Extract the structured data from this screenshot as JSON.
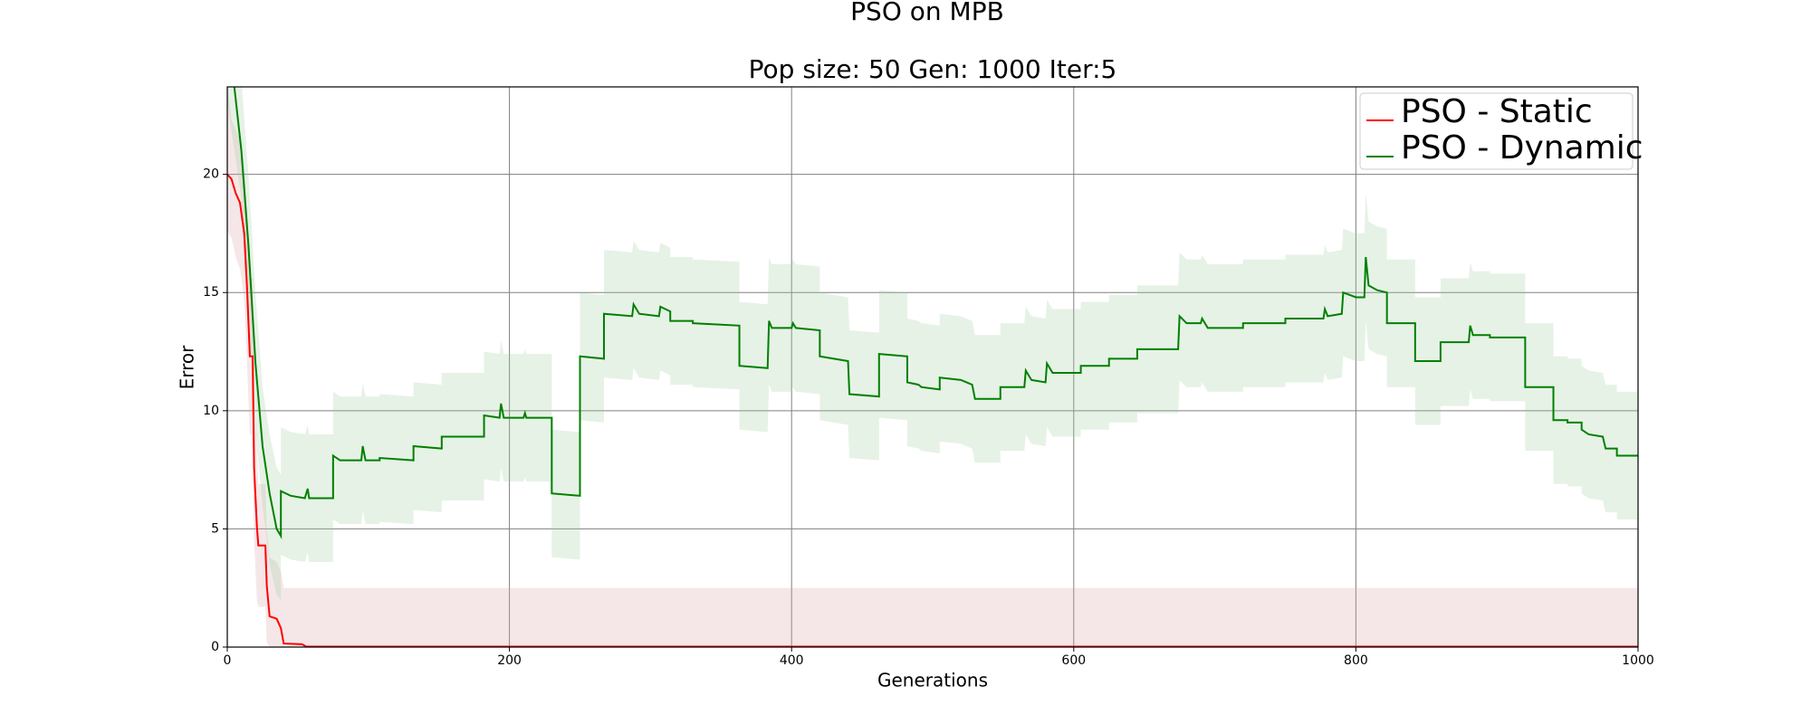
{
  "chart_data": {
    "type": "line",
    "title": "PSO on MPB",
    "subtitle": "Pop size: 50  Gen: 1000  Iter:5",
    "x_label": "Generations",
    "y_label": "Error",
    "xlim": [
      0,
      1000
    ],
    "ylim": [
      0,
      23.7
    ],
    "xticks": [
      0,
      200,
      400,
      600,
      800,
      1000
    ],
    "yticks": [
      0,
      5,
      10,
      15,
      20
    ],
    "grid": true,
    "legend": "upper right",
    "series": [
      {
        "name": "PSO - Static",
        "color": "#ff0000",
        "band_color": "#d9a0a5",
        "x": [
          0,
          3,
          6,
          9,
          12,
          14,
          16,
          18,
          19,
          21,
          22,
          27,
          28,
          30,
          35,
          38,
          40,
          53,
          56,
          1000
        ],
        "values": [
          20.0,
          19.8,
          19.2,
          18.8,
          17.5,
          15.2,
          12.3,
          12.3,
          7.6,
          5.1,
          4.3,
          4.3,
          2.6,
          1.3,
          1.2,
          0.8,
          0.15,
          0.12,
          0.02,
          0.02
        ],
        "lower": [
          17.6,
          17.3,
          16.5,
          16.0,
          14.7,
          12.0,
          9.0,
          9.0,
          4.5,
          2.0,
          1.7,
          1.7,
          0.2,
          0,
          0,
          0,
          0,
          0,
          0,
          0
        ],
        "upper": [
          24.0,
          22.3,
          21.9,
          21.5,
          20.3,
          18.4,
          15.6,
          15.6,
          10.7,
          8.2,
          6.9,
          6.9,
          5.0,
          3.8,
          3.6,
          3.2,
          2.5,
          2.5,
          2.5,
          2.5
        ]
      },
      {
        "name": "PSO - Dynamic",
        "color": "#008000",
        "band_color": "#9ccc9c",
        "x": [
          0,
          5,
          10,
          15,
          20,
          25,
          30,
          35,
          38,
          38,
          45,
          55,
          57,
          58,
          75,
          75,
          80,
          95,
          96,
          98,
          108,
          108,
          132,
          132,
          152,
          152,
          182,
          182,
          193,
          194,
          196,
          210,
          211,
          212,
          230,
          230,
          250,
          250,
          267,
          267,
          287,
          288,
          292,
          306,
          307,
          314,
          314,
          330,
          330,
          363,
          363,
          383,
          384,
          386,
          400,
          401,
          403,
          420,
          420,
          440,
          441,
          462,
          462,
          482,
          482,
          490,
          492,
          505,
          505,
          520,
          528,
          530,
          548,
          548,
          565,
          566,
          570,
          580,
          581,
          585,
          605,
          605,
          625,
          625,
          645,
          645,
          674,
          675,
          680,
          690,
          691,
          695,
          720,
          720,
          750,
          750,
          777,
          778,
          780,
          790,
          791,
          800,
          806,
          807,
          809,
          815,
          822,
          822,
          842,
          842,
          860,
          860,
          880,
          881,
          883,
          895,
          895,
          920,
          920,
          940,
          940,
          950,
          950,
          960,
          960,
          965,
          975,
          977,
          985,
          985,
          1000
        ],
        "values": [
          27,
          23.7,
          21,
          17,
          12,
          8.5,
          6.5,
          5.0,
          4.7,
          6.6,
          6.4,
          6.3,
          6.7,
          6.3,
          6.3,
          8.1,
          7.9,
          7.9,
          8.5,
          7.9,
          7.9,
          8.0,
          7.9,
          8.5,
          8.4,
          8.9,
          8.9,
          9.8,
          9.7,
          10.3,
          9.7,
          9.7,
          9.9,
          9.7,
          9.7,
          6.5,
          6.4,
          12.3,
          12.2,
          14.1,
          14.0,
          14.5,
          14.1,
          14.0,
          14.4,
          14.2,
          13.8,
          13.8,
          13.7,
          13.6,
          11.9,
          11.8,
          13.8,
          13.5,
          13.5,
          13.7,
          13.5,
          13.4,
          12.3,
          12.1,
          10.7,
          10.6,
          12.4,
          12.3,
          11.2,
          11.1,
          11.0,
          10.9,
          11.4,
          11.3,
          11.1,
          10.5,
          10.5,
          11.0,
          11.0,
          11.7,
          11.3,
          11.2,
          12.0,
          11.6,
          11.6,
          11.9,
          11.9,
          12.2,
          12.2,
          12.6,
          12.6,
          14.0,
          13.7,
          13.7,
          13.9,
          13.5,
          13.5,
          13.7,
          13.7,
          13.9,
          13.9,
          14.3,
          14.0,
          14.1,
          15.0,
          14.8,
          14.8,
          16.5,
          15.3,
          15.1,
          15.0,
          13.7,
          13.7,
          12.1,
          12.1,
          12.9,
          12.9,
          13.6,
          13.2,
          13.2,
          13.1,
          13.1,
          11.0,
          11.0,
          9.6,
          9.6,
          9.5,
          9.5,
          9.2,
          9.0,
          8.9,
          8.4,
          8.4,
          8.1,
          8.1
        ],
        "lower": [
          23,
          21,
          19,
          14,
          9,
          6,
          3.5,
          2.2,
          2.0,
          3.9,
          3.7,
          3.6,
          4.0,
          3.6,
          3.6,
          5.4,
          5.2,
          5.2,
          5.8,
          5.2,
          5.2,
          5.3,
          5.2,
          5.8,
          5.7,
          6.2,
          6.2,
          7.1,
          7.0,
          7.6,
          7.0,
          7.0,
          7.2,
          7.0,
          7.0,
          3.8,
          3.7,
          9.6,
          9.5,
          11.4,
          11.3,
          11.8,
          11.4,
          11.3,
          11.7,
          11.5,
          11.1,
          11.1,
          11.0,
          10.9,
          9.2,
          9.1,
          11.1,
          10.8,
          10.8,
          11.0,
          10.8,
          10.7,
          9.6,
          9.4,
          8.0,
          7.9,
          9.7,
          9.6,
          8.5,
          8.4,
          8.3,
          8.2,
          8.7,
          8.6,
          8.4,
          7.8,
          7.8,
          8.3,
          8.3,
          9.0,
          8.6,
          8.5,
          9.3,
          8.9,
          8.9,
          9.2,
          9.2,
          9.5,
          9.5,
          9.9,
          9.9,
          11.3,
          11.0,
          11.0,
          11.2,
          10.8,
          10.8,
          11.0,
          11.0,
          11.2,
          11.2,
          11.6,
          11.3,
          11.4,
          12.3,
          12.1,
          12.1,
          13.8,
          12.6,
          12.4,
          12.3,
          11.0,
          11.0,
          9.4,
          9.4,
          10.2,
          10.2,
          10.9,
          10.5,
          10.5,
          10.4,
          10.4,
          8.3,
          8.3,
          6.9,
          6.9,
          6.8,
          6.8,
          6.5,
          6.3,
          6.2,
          5.7,
          5.7,
          5.4,
          5.4
        ],
        "upper": [
          32,
          28,
          24,
          20,
          15,
          11,
          9,
          7.6,
          7.3,
          9.3,
          9.1,
          9.0,
          9.4,
          9.0,
          9.0,
          10.8,
          10.6,
          10.6,
          11.2,
          10.6,
          10.6,
          10.7,
          10.6,
          11.2,
          11.1,
          11.6,
          11.6,
          12.5,
          12.4,
          13.0,
          12.4,
          12.4,
          12.6,
          12.4,
          12.4,
          9.2,
          9.1,
          15.0,
          14.9,
          16.8,
          16.7,
          17.2,
          16.8,
          16.7,
          17.1,
          16.9,
          16.5,
          16.5,
          16.4,
          16.3,
          14.6,
          14.5,
          16.5,
          16.2,
          16.2,
          16.4,
          16.2,
          16.1,
          15.0,
          14.8,
          13.4,
          13.3,
          15.1,
          15.0,
          13.9,
          13.8,
          13.7,
          13.6,
          14.1,
          14.0,
          13.8,
          13.2,
          13.2,
          13.7,
          13.7,
          14.4,
          14.0,
          13.9,
          14.7,
          14.3,
          14.3,
          14.6,
          14.6,
          14.9,
          14.9,
          15.3,
          15.3,
          16.7,
          16.4,
          16.4,
          16.6,
          16.2,
          16.2,
          16.4,
          16.4,
          16.6,
          16.6,
          17.0,
          16.7,
          16.8,
          17.7,
          17.5,
          17.5,
          19.2,
          18.0,
          17.8,
          17.7,
          16.4,
          16.4,
          14.8,
          14.8,
          15.6,
          15.6,
          16.3,
          15.9,
          15.9,
          15.8,
          15.8,
          13.7,
          13.7,
          12.3,
          12.3,
          12.2,
          12.2,
          11.9,
          11.7,
          11.6,
          11.1,
          11.1,
          10.8,
          10.8
        ]
      }
    ]
  }
}
